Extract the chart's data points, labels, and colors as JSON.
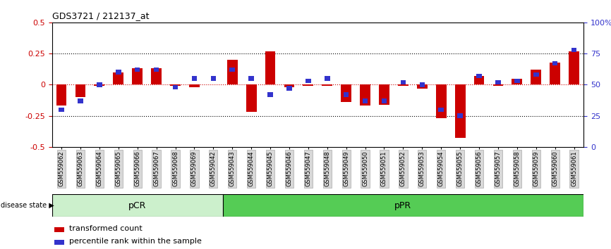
{
  "title": "GDS3721 / 212137_at",
  "samples": [
    "GSM559062",
    "GSM559063",
    "GSM559064",
    "GSM559065",
    "GSM559066",
    "GSM559067",
    "GSM559068",
    "GSM559069",
    "GSM559042",
    "GSM559043",
    "GSM559044",
    "GSM559045",
    "GSM559046",
    "GSM559047",
    "GSM559048",
    "GSM559049",
    "GSM559050",
    "GSM559051",
    "GSM559052",
    "GSM559053",
    "GSM559054",
    "GSM559055",
    "GSM559056",
    "GSM559057",
    "GSM559058",
    "GSM559059",
    "GSM559060",
    "GSM559061"
  ],
  "red_bars": [
    -0.17,
    -0.1,
    -0.01,
    0.1,
    0.13,
    0.13,
    -0.01,
    -0.02,
    0.0,
    0.2,
    -0.22,
    0.27,
    -0.02,
    -0.01,
    -0.01,
    -0.14,
    -0.17,
    -0.16,
    -0.01,
    -0.03,
    -0.27,
    -0.43,
    0.07,
    -0.01,
    0.05,
    0.12,
    0.18,
    0.27
  ],
  "blue_vals": [
    30,
    37,
    50,
    60,
    62,
    62,
    48,
    55,
    55,
    62,
    55,
    42,
    47,
    53,
    55,
    42,
    37,
    37,
    52,
    50,
    30,
    25,
    57,
    52,
    53,
    58,
    67,
    78
  ],
  "pcr_count": 9,
  "ppr_count": 19,
  "ylim": [
    -0.5,
    0.5
  ],
  "yticks_left": [
    -0.5,
    -0.25,
    0,
    0.25,
    0.5
  ],
  "yticks_right": [
    0,
    25,
    50,
    75,
    100
  ],
  "ytick_labels_right": [
    "0",
    "25",
    "50",
    "75",
    "100%"
  ],
  "hlines": [
    0.25,
    -0.25
  ],
  "zero_line": 0.0,
  "pcr_label": "pCR",
  "ppr_label": "pPR",
  "disease_state_label": "disease state",
  "legend1": "transformed count",
  "legend2": "percentile rank within the sample",
  "red_color": "#CC0000",
  "blue_color": "#3333CC",
  "pcr_color": "#ccf0cc",
  "ppr_color": "#55cc55",
  "bar_width": 0.55
}
